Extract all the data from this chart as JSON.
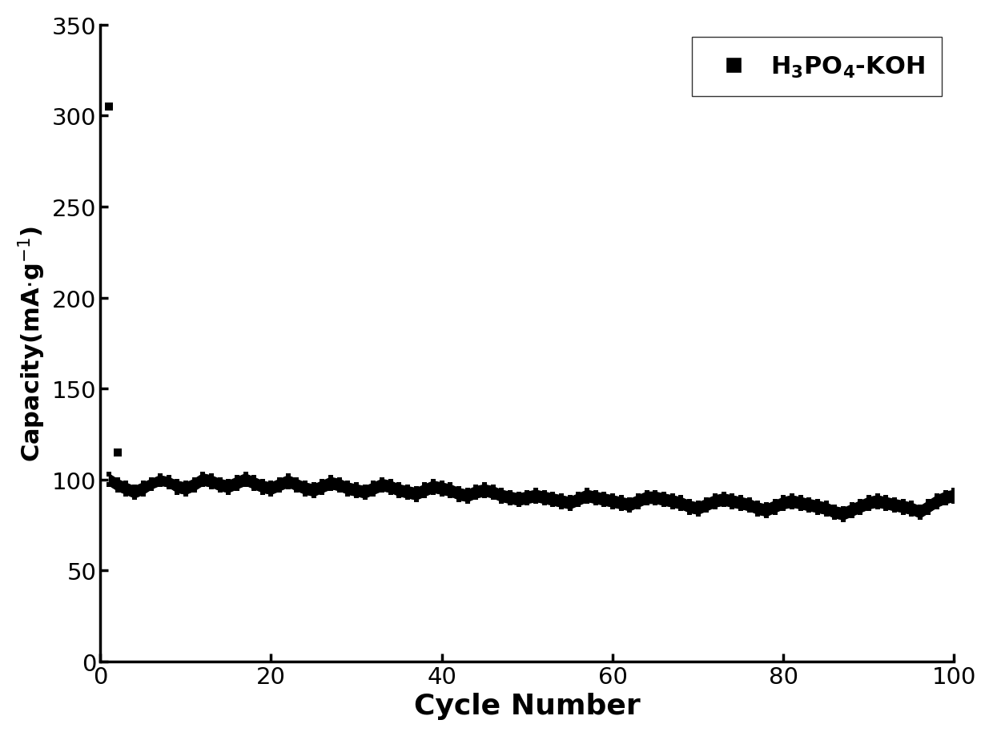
{
  "title": "",
  "xlabel": "Cycle Number",
  "ylabel": "Capacity(mA·g⁻¹)",
  "xlim": [
    0,
    100
  ],
  "ylim": [
    0,
    350
  ],
  "yticks": [
    0,
    50,
    100,
    150,
    200,
    250,
    300,
    350
  ],
  "xticks": [
    0,
    20,
    40,
    60,
    80,
    100
  ],
  "legend_label": "H$_3$PO$_4$-KOH",
  "color": "#000000",
  "background_color": "#ffffff",
  "first_cycle_charge": 305,
  "second_cycle_charge": 115,
  "cycles_upper": [
    103,
    100,
    98,
    96,
    98,
    100,
    102,
    101,
    99,
    98,
    100,
    103,
    102,
    100,
    99,
    101,
    103,
    101,
    99,
    98,
    100,
    102,
    100,
    98,
    97,
    99,
    101,
    100,
    98,
    97,
    96,
    98,
    100,
    99,
    97,
    96,
    95,
    97,
    99,
    98,
    97,
    95,
    94,
    96,
    97,
    96,
    94,
    93,
    92,
    93,
    94,
    93,
    92,
    91,
    90,
    92,
    94,
    93,
    92,
    91,
    90,
    89,
    91,
    93,
    93,
    92,
    91,
    90,
    88,
    87,
    89,
    91,
    92,
    91,
    90,
    89,
    87,
    86,
    88,
    90,
    91,
    90,
    89,
    88,
    87,
    85,
    84,
    86,
    88,
    90,
    91,
    90,
    89,
    88,
    87,
    85,
    88,
    91,
    93,
    94
  ],
  "cycles_lower": [
    97,
    94,
    92,
    90,
    92,
    95,
    97,
    96,
    93,
    92,
    94,
    97,
    96,
    94,
    93,
    95,
    97,
    95,
    93,
    92,
    94,
    96,
    94,
    92,
    91,
    93,
    95,
    94,
    92,
    91,
    90,
    92,
    94,
    93,
    91,
    90,
    89,
    91,
    93,
    92,
    91,
    89,
    88,
    90,
    91,
    90,
    88,
    87,
    86,
    87,
    88,
    87,
    86,
    85,
    84,
    86,
    88,
    87,
    86,
    85,
    84,
    83,
    85,
    87,
    87,
    86,
    85,
    84,
    82,
    81,
    83,
    85,
    86,
    85,
    84,
    83,
    81,
    80,
    82,
    84,
    85,
    84,
    83,
    82,
    81,
    79,
    78,
    80,
    82,
    84,
    85,
    84,
    83,
    82,
    81,
    79,
    82,
    85,
    87,
    88
  ]
}
